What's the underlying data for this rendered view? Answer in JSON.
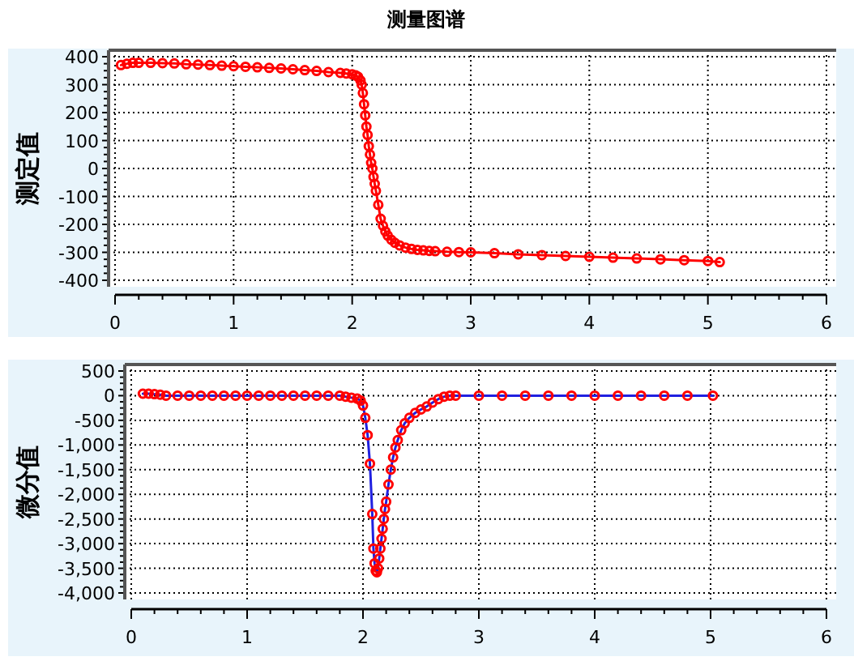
{
  "chart_data": [
    {
      "type": "line",
      "title": "测量图谱",
      "ylabel": "测定值",
      "grid": true,
      "marker": "circle",
      "line_style": "solid",
      "xlim": [
        0,
        6
      ],
      "xticks": [
        0,
        1,
        2,
        3,
        4,
        5,
        6
      ],
      "ylim": [
        -400,
        400
      ],
      "yticks": [
        -400,
        -300,
        -200,
        -100,
        0,
        100,
        200,
        300,
        400
      ],
      "series": [
        {
          "color": "#ff0000",
          "x": [
            0.05,
            0.1,
            0.15,
            0.2,
            0.3,
            0.4,
            0.5,
            0.6,
            0.7,
            0.8,
            0.9,
            1.0,
            1.1,
            1.2,
            1.3,
            1.4,
            1.5,
            1.6,
            1.7,
            1.8,
            1.9,
            1.95,
            2.0,
            2.03,
            2.05,
            2.07,
            2.08,
            2.09,
            2.1,
            2.11,
            2.12,
            2.13,
            2.14,
            2.15,
            2.16,
            2.17,
            2.18,
            2.19,
            2.2,
            2.22,
            2.24,
            2.26,
            2.28,
            2.3,
            2.33,
            2.36,
            2.4,
            2.45,
            2.5,
            2.55,
            2.6,
            2.65,
            2.7,
            2.8,
            2.9,
            3.0,
            3.2,
            3.4,
            3.6,
            3.8,
            4.0,
            4.2,
            4.4,
            4.6,
            4.8,
            5.0,
            5.1
          ],
          "values": [
            370,
            375,
            378,
            378,
            378,
            377,
            376,
            373,
            372,
            370,
            368,
            366,
            364,
            362,
            360,
            358,
            355,
            352,
            349,
            345,
            342,
            340,
            337,
            333,
            328,
            315,
            300,
            270,
            230,
            190,
            150,
            120,
            80,
            50,
            20,
            0,
            -30,
            -55,
            -80,
            -130,
            -180,
            -205,
            -225,
            -240,
            -255,
            -266,
            -275,
            -283,
            -288,
            -291,
            -293,
            -295,
            -296,
            -298,
            -299,
            -300,
            -303,
            -307,
            -310,
            -313,
            -316,
            -319,
            -322,
            -325,
            -328,
            -331,
            -335
          ]
        }
      ]
    },
    {
      "type": "line",
      "ylabel": "微分值",
      "grid": true,
      "marker": "circle",
      "line_style": "solid",
      "xlim": [
        0,
        6
      ],
      "xticks": [
        0,
        1,
        2,
        3,
        4,
        5,
        6
      ],
      "ylim": [
        -4000,
        500
      ],
      "yticks": [
        {
          "value": -4000,
          "label": "-4,000"
        },
        {
          "value": -3500,
          "label": "-3,500"
        },
        {
          "value": -3000,
          "label": "-3,000"
        },
        {
          "value": -2500,
          "label": "-2,500"
        },
        {
          "value": -2000,
          "label": "-2,000"
        },
        {
          "value": -1500,
          "label": "-1,500"
        },
        {
          "value": -1000,
          "label": "-1,000"
        },
        -500,
        0,
        500
      ],
      "series": [
        {
          "color": "#ff0000",
          "x": [
            0.1,
            0.15,
            0.2,
            0.25,
            0.3,
            0.4,
            0.5,
            0.6,
            0.7,
            0.8,
            0.9,
            1.0,
            1.1,
            1.2,
            1.3,
            1.4,
            1.5,
            1.6,
            1.7,
            1.8,
            1.85,
            1.9,
            1.95,
            1.98,
            2.0,
            2.02,
            2.04,
            2.06,
            2.08,
            2.09,
            2.1,
            2.11,
            2.12,
            2.13,
            2.14,
            2.15,
            2.16,
            2.17,
            2.18,
            2.19,
            2.2,
            2.22,
            2.24,
            2.26,
            2.28,
            2.3,
            2.33,
            2.36,
            2.4,
            2.45,
            2.5,
            2.55,
            2.6,
            2.65,
            2.7,
            2.75,
            2.8,
            3.0,
            3.2,
            3.4,
            3.6,
            3.8,
            4.0,
            4.2,
            4.4,
            4.6,
            4.8,
            5.02
          ],
          "values": [
            40,
            40,
            30,
            20,
            0,
            0,
            0,
            0,
            0,
            0,
            0,
            0,
            0,
            0,
            0,
            0,
            0,
            0,
            0,
            0,
            -20,
            -40,
            -60,
            -100,
            -200,
            -450,
            -800,
            -1380,
            -2400,
            -3100,
            -3400,
            -3550,
            -3580,
            -3500,
            -3300,
            -3100,
            -2900,
            -2700,
            -2500,
            -2300,
            -2150,
            -1800,
            -1500,
            -1250,
            -1050,
            -900,
            -700,
            -560,
            -450,
            -350,
            -280,
            -220,
            -140,
            -70,
            -20,
            0,
            0,
            0,
            0,
            0,
            0,
            0,
            0,
            0,
            0,
            0,
            0,
            0
          ]
        }
      ]
    }
  ]
}
